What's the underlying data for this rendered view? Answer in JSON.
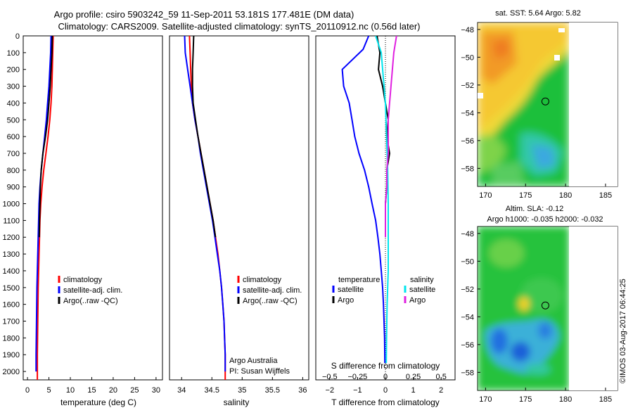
{
  "title": {
    "line1": "Argo profile: csiro 5903242_59 11-Sep-2011 53.181S 177.481E (DM data)",
    "line2": "Climatology: CARS2009. Satellite-adjusted climatology: synTS_20110912.nc (0.56d later)"
  },
  "watermark": "©IMOS 03-Aug-2017 06:44:25",
  "colors": {
    "climatology": "#ff0000",
    "satellite": "#0000ff",
    "argo": "#000000",
    "satellite_salinity": "#00e5ee",
    "argo_salinity": "#e020e0"
  },
  "chart_data": [
    {
      "id": "temperature",
      "type": "line",
      "xlabel": "temperature (deg C)",
      "ylabel": "",
      "xlim": [
        -1,
        31.5
      ],
      "ylim": [
        2050,
        0
      ],
      "xticks": [
        0,
        5,
        10,
        15,
        20,
        25,
        30
      ],
      "yticks": [
        0,
        100,
        200,
        300,
        400,
        500,
        600,
        700,
        800,
        900,
        1000,
        1100,
        1200,
        1300,
        1400,
        1500,
        1600,
        1700,
        1800,
        1900,
        2000
      ],
      "legend": {
        "position": "lower-center",
        "entries": [
          {
            "label": "climatology",
            "color": "#ff0000"
          },
          {
            "label": "satellite-adj. clim.",
            "color": "#0000ff"
          },
          {
            "label": "Argo(..raw -QC)",
            "color": "#000000"
          }
        ]
      },
      "series": [
        {
          "color": "#ff0000",
          "x": [
            6.0,
            5.9,
            5.8,
            5.7,
            5.5,
            5.2,
            4.8,
            4.3,
            3.8,
            3.4,
            3.1,
            2.9,
            2.8,
            2.7,
            2.6,
            2.5,
            2.45,
            2.4,
            2.35,
            2.3,
            2.3
          ],
          "y": [
            0,
            100,
            200,
            300,
            400,
            500,
            600,
            700,
            800,
            900,
            1000,
            1100,
            1200,
            1300,
            1400,
            1500,
            1600,
            1700,
            1800,
            1900,
            2050
          ]
        },
        {
          "color": "#0000ff",
          "x": [
            5.5,
            5.4,
            5.2,
            5.0,
            4.7,
            4.4,
            4.0,
            3.6,
            3.2,
            2.9,
            2.7,
            2.6,
            2.5,
            2.4,
            2.3,
            2.2,
            2.15,
            2.1,
            2.05,
            2.0,
            2.0
          ],
          "y": [
            0,
            100,
            200,
            300,
            400,
            500,
            600,
            700,
            800,
            900,
            1000,
            1100,
            1200,
            1300,
            1400,
            1500,
            1600,
            1700,
            1800,
            1900,
            2000
          ]
        },
        {
          "color": "#000000",
          "x": [
            5.8,
            5.7,
            5.5,
            5.3,
            5.0,
            4.7,
            4.2,
            3.6,
            3.2,
            3.0,
            2.9,
            2.8,
            2.75
          ],
          "y": [
            0,
            100,
            200,
            300,
            400,
            500,
            600,
            700,
            800,
            900,
            1000,
            1100,
            1200
          ]
        }
      ]
    },
    {
      "id": "salinity",
      "type": "line",
      "xlabel": "salinity",
      "ylabel": "",
      "xlim": [
        33.8,
        36.1
      ],
      "ylim": [
        2050,
        0
      ],
      "xticks": [
        34,
        34.5,
        35,
        35.5,
        36
      ],
      "legend": {
        "position": "lower-center",
        "entries": [
          {
            "label": "climatology",
            "color": "#ff0000"
          },
          {
            "label": "satellite-adj. clim.",
            "color": "#0000ff"
          },
          {
            "label": "Argo(..raw -QC)",
            "color": "#000000"
          }
        ]
      },
      "annotation": {
        "line1": "Argo Australia",
        "line2": "PI: Susan Wijffels"
      },
      "series": [
        {
          "color": "#ff0000",
          "x": [
            34.13,
            34.14,
            34.15,
            34.16,
            34.18,
            34.22,
            34.27,
            34.32,
            34.37,
            34.42,
            34.47,
            34.52,
            34.56,
            34.6,
            34.63,
            34.66,
            34.68,
            34.7,
            34.71,
            34.72,
            34.72
          ],
          "y": [
            0,
            100,
            200,
            300,
            400,
            500,
            600,
            700,
            800,
            900,
            1000,
            1100,
            1200,
            1300,
            1400,
            1500,
            1600,
            1700,
            1800,
            1900,
            2050
          ]
        },
        {
          "color": "#0000ff",
          "x": [
            34.05,
            34.06,
            34.1,
            34.14,
            34.18,
            34.22,
            34.27,
            34.31,
            34.36,
            34.41,
            34.46,
            34.51,
            34.55,
            34.59,
            34.63,
            34.66,
            34.68,
            34.7,
            34.71,
            34.72,
            34.72
          ],
          "y": [
            0,
            100,
            200,
            300,
            400,
            500,
            600,
            700,
            800,
            900,
            1000,
            1100,
            1200,
            1300,
            1400,
            1500,
            1600,
            1700,
            1800,
            1900,
            2000
          ]
        },
        {
          "color": "#000000",
          "x": [
            34.2,
            34.19,
            34.18,
            34.18,
            34.19,
            34.23,
            34.27,
            34.32,
            34.37,
            34.42,
            34.47,
            34.52,
            34.56
          ],
          "y": [
            0,
            100,
            200,
            300,
            400,
            500,
            600,
            700,
            800,
            900,
            1000,
            1100,
            1200
          ]
        }
      ]
    },
    {
      "id": "difference",
      "type": "line",
      "xlabel": "T difference from climatology",
      "xlabel_top": "S difference from climatology",
      "ylabel": "",
      "xlim": [
        -2.5,
        2.5
      ],
      "ylim": [
        2050,
        0
      ],
      "xticks": [
        -2,
        -1,
        0,
        1,
        2
      ],
      "xticks_top": [
        -0.5,
        -0.25,
        0,
        0.25,
        0.5
      ],
      "legend_temperature": {
        "title": "temperature",
        "entries": [
          {
            "label": "satellite",
            "color": "#0000ff"
          },
          {
            "label": "Argo",
            "color": "#000000"
          }
        ]
      },
      "legend_salinity": {
        "title": "salinity",
        "entries": [
          {
            "label": "satellite",
            "color": "#00e5ee"
          },
          {
            "label": "Argo",
            "color": "#e020e0"
          }
        ]
      },
      "series": [
        {
          "color": "#0000ff",
          "x": [
            -0.6,
            -0.8,
            -1.55,
            -1.5,
            -1.3,
            -1.2,
            -1.1,
            -0.95,
            -0.75,
            -0.6,
            -0.48,
            -0.35,
            -0.27,
            -0.2,
            -0.15,
            -0.1,
            -0.07,
            -0.05,
            -0.03,
            -0.02
          ],
          "y": [
            0,
            80,
            200,
            300,
            400,
            500,
            600,
            700,
            800,
            900,
            1000,
            1100,
            1200,
            1300,
            1400,
            1500,
            1600,
            1700,
            1800,
            1950
          ]
        },
        {
          "color": "#000000",
          "x": [
            -0.3,
            -0.2,
            -0.25,
            -0.1,
            0.0,
            0.1,
            0.05,
            0.15,
            0.05,
            0.05,
            0.0,
            0.0,
            0.0
          ],
          "y": [
            0,
            100,
            200,
            300,
            400,
            500,
            600,
            700,
            800,
            900,
            1000,
            1100,
            1200
          ]
        },
        {
          "color": "#00e5ee",
          "x": [
            -0.35,
            -0.15,
            -0.1,
            -0.05,
            0.0,
            0.02,
            0.04,
            0.06,
            0.08,
            0.09,
            0.1,
            0.1,
            0.1,
            0.1,
            0.1,
            0.08,
            0.06,
            0.05,
            0.04,
            0.03
          ],
          "y": [
            0,
            100,
            200,
            300,
            400,
            500,
            600,
            700,
            800,
            900,
            1000,
            1100,
            1200,
            1300,
            1400,
            1500,
            1600,
            1700,
            1800,
            1950
          ]
        },
        {
          "color": "#e020e0",
          "x": [
            0.4,
            0.3,
            0.25,
            0.2,
            0.15,
            0.1,
            0.1,
            0.1,
            0.05,
            0.05,
            0.0,
            0.0,
            0.0
          ],
          "y": [
            0,
            100,
            200,
            300,
            400,
            500,
            600,
            700,
            800,
            900,
            1000,
            1100,
            1200
          ]
        }
      ]
    },
    {
      "id": "sst_map",
      "type": "heatmap",
      "title": "sat. SST: 5.64  Argo: 5.82",
      "xlim": [
        169,
        186.5
      ],
      "ylim": [
        -59.3,
        -47.5
      ],
      "xticks": [
        170,
        175,
        180,
        185
      ],
      "yticks": [
        -48,
        -50,
        -52,
        -54,
        -56,
        -58
      ],
      "argo_position": {
        "lon": 177.481,
        "lat": -53.181
      }
    },
    {
      "id": "sla_map",
      "type": "heatmap",
      "title_line1": "Altim. SLA: -0.12",
      "title_line2": "Argo h1000: -0.035 h2000: -0.032",
      "xlim": [
        169,
        186.5
      ],
      "ylim": [
        -59.3,
        -47.5
      ],
      "xticks": [
        170,
        175,
        180,
        185
      ],
      "yticks": [
        -48,
        -50,
        -52,
        -54,
        -56,
        -58
      ],
      "argo_position": {
        "lon": 177.481,
        "lat": -53.181
      }
    }
  ]
}
